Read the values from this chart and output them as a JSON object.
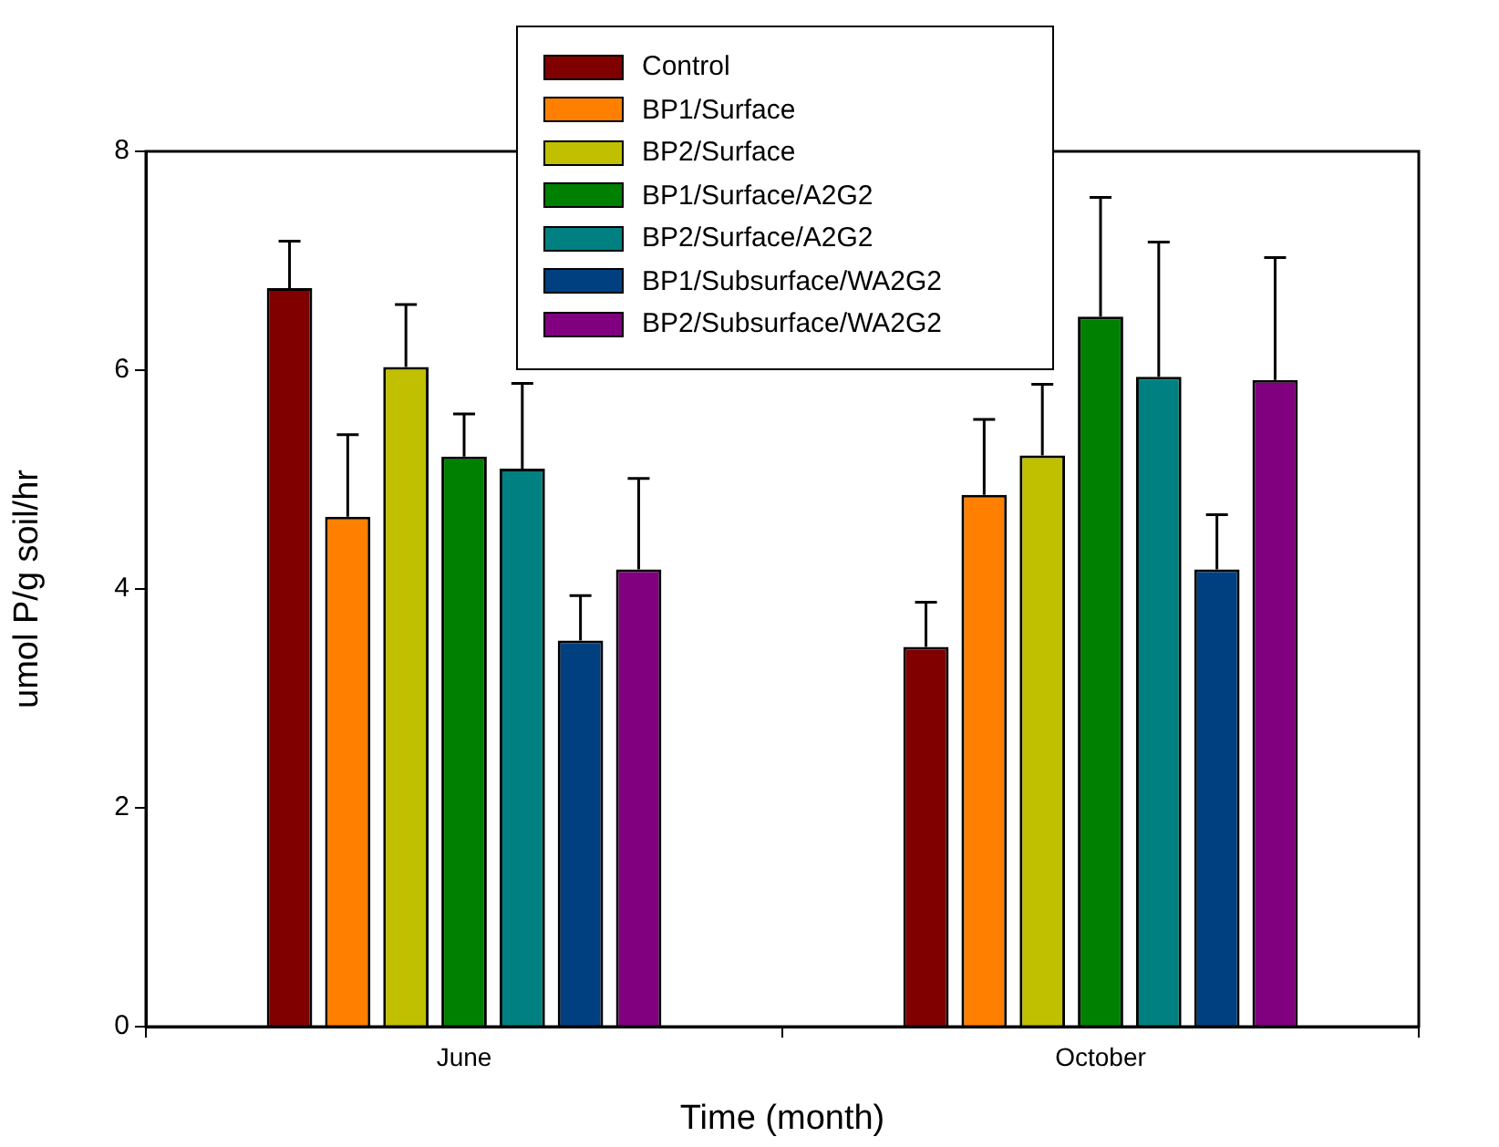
{
  "chart_data": {
    "type": "bar",
    "xlabel": "Time (month)",
    "ylabel": "umol P/g soil/hr",
    "categories": [
      "June",
      "October"
    ],
    "ylim": [
      0,
      8
    ],
    "yticks": [
      0,
      2,
      4,
      6,
      8
    ],
    "grid": false,
    "legend": "top",
    "series": [
      {
        "name": "Control",
        "color": "#800000",
        "values": [
          6.75,
          3.47
        ],
        "errors": [
          [
            6.75,
            7.18
          ],
          [
            3.47,
            3.88
          ]
        ]
      },
      {
        "name": "BP1/Surface",
        "color": "#ff8000",
        "values": [
          4.66,
          4.86
        ],
        "errors": [
          [
            4.66,
            5.41
          ],
          [
            4.86,
            5.55
          ]
        ]
      },
      {
        "name": "BP2/Surface",
        "color": "#c0c000",
        "values": [
          6.03,
          5.22
        ],
        "errors": [
          [
            6.03,
            6.6
          ],
          [
            5.22,
            5.87
          ]
        ]
      },
      {
        "name": "BP1/Surface/A2G2",
        "color": "#008000",
        "values": [
          5.21,
          6.49
        ],
        "errors": [
          [
            5.21,
            5.6
          ],
          [
            6.49,
            7.58
          ]
        ]
      },
      {
        "name": "BP2/Surface/A2G2",
        "color": "#008080",
        "values": [
          5.1,
          5.94
        ],
        "errors": [
          [
            5.1,
            5.88
          ],
          [
            5.94,
            7.17
          ]
        ]
      },
      {
        "name": "BP1/Subsurface/WA2G2",
        "color": "#004080",
        "values": [
          3.53,
          4.18
        ],
        "errors": [
          [
            3.53,
            3.94
          ],
          [
            4.18,
            4.68
          ]
        ]
      },
      {
        "name": "BP2/Subsurface/WA2G2",
        "color": "#800080",
        "values": [
          4.18,
          5.91
        ],
        "errors": [
          [
            4.18,
            5.01
          ],
          [
            5.91,
            7.03
          ]
        ]
      }
    ]
  }
}
